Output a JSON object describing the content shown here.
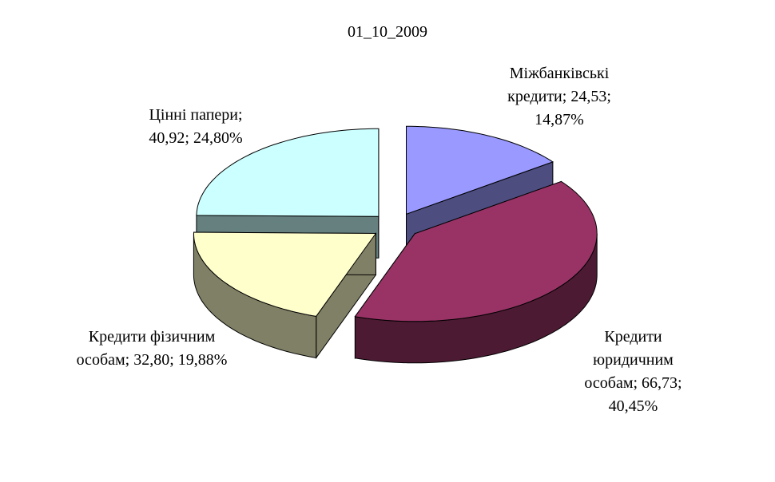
{
  "chart_data": {
    "type": "pie3d",
    "title": "01_10_2009",
    "values": [
      24.53,
      66.73,
      32.8,
      40.92
    ],
    "percents": [
      14.87,
      40.45,
      19.88,
      24.8
    ],
    "value_labels": [
      "Міжбанківські кредити; 24,53; 14,87%",
      "Кредити юридичним особам; 66,73; 40,45%",
      "Кредити фізичним особам; 32,80; 19,88%",
      "Цінні папери; 40,92; 24,80%"
    ],
    "colors": [
      "#9999ff",
      "#993366",
      "#ffffcc",
      "#ccffff"
    ],
    "side_colors": [
      "#4d4d80",
      "#4d1a33",
      "#808066",
      "#668080"
    ]
  }
}
